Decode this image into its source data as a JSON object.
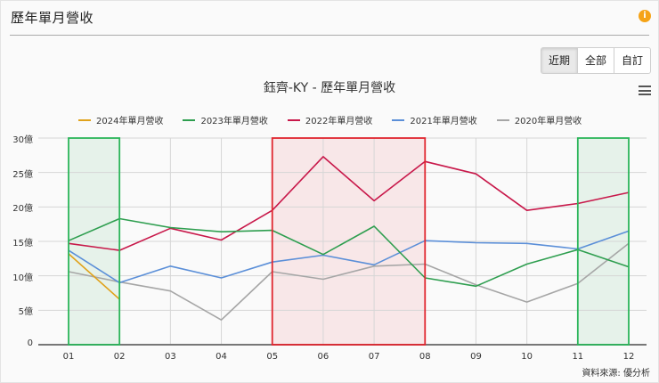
{
  "panel": {
    "title": "歷年單月營收",
    "info_icon": "info-icon"
  },
  "range_buttons": [
    {
      "label": "近期",
      "active": true
    },
    {
      "label": "全部",
      "active": false
    },
    {
      "label": "自訂",
      "active": false
    }
  ],
  "menu_icon": "hamburger-menu-icon",
  "source_text": "資料來源: 優分析",
  "colors": {
    "2024": "#e0a21b",
    "2023": "#2e9e4f",
    "2022": "#c8184a",
    "2021": "#5b8fd8",
    "2020": "#a6a6a6",
    "highlight_green": "#2bb55a",
    "highlight_red": "#e0262f"
  },
  "chart_data": {
    "type": "line",
    "title": "鈺齊-KY - 歷年單月營收",
    "xlabel": "",
    "ylabel": "",
    "categories": [
      "01",
      "02",
      "03",
      "04",
      "05",
      "06",
      "07",
      "08",
      "09",
      "10",
      "11",
      "12"
    ],
    "y_ticks": [
      "0",
      "5億",
      "10億",
      "15億",
      "20億",
      "25億",
      "30億"
    ],
    "ylim": [
      0,
      30
    ],
    "unit": "億",
    "grid": true,
    "legend_position": "top",
    "series": [
      {
        "name": "2024年單月營收",
        "color": "#e0a21b",
        "values": [
          13.2,
          6.6
        ]
      },
      {
        "name": "2023年單月營收",
        "color": "#2e9e4f",
        "values": [
          15.1,
          18.3,
          17.0,
          16.4,
          16.6,
          13.1,
          17.2,
          9.7,
          8.5,
          11.7,
          13.8,
          11.3
        ]
      },
      {
        "name": "2022年單月營收",
        "color": "#c8184a",
        "values": [
          14.7,
          13.7,
          16.9,
          15.2,
          19.5,
          27.3,
          20.9,
          26.6,
          24.8,
          19.5,
          20.5,
          22.1
        ]
      },
      {
        "name": "2021年單月營收",
        "color": "#5b8fd8",
        "values": [
          13.7,
          9.0,
          11.4,
          9.7,
          12.0,
          13.0,
          11.6,
          15.1,
          14.8,
          14.7,
          13.9,
          16.5
        ]
      },
      {
        "name": "2020年單月營收",
        "color": "#a6a6a6",
        "values": [
          10.6,
          9.1,
          7.8,
          3.6,
          10.6,
          9.5,
          11.4,
          11.7,
          8.7,
          6.2,
          8.9,
          14.7
        ]
      }
    ],
    "annotations": [
      {
        "type": "highlight-box",
        "color": "green",
        "from": "01",
        "to": "02"
      },
      {
        "type": "highlight-box",
        "color": "red",
        "from": "05",
        "to": "08"
      },
      {
        "type": "highlight-box",
        "color": "green",
        "from": "11",
        "to": "12"
      }
    ]
  }
}
